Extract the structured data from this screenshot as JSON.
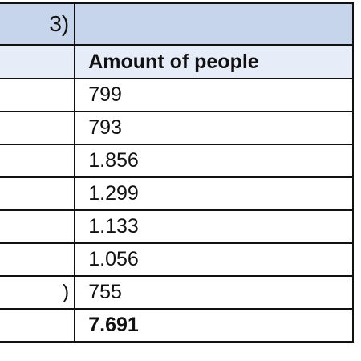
{
  "table": {
    "title_fragment": "3)",
    "header": {
      "left": "",
      "amount": "Amount of people"
    },
    "rows": [
      {
        "left": "",
        "amount": "799"
      },
      {
        "left": "",
        "amount": "793"
      },
      {
        "left": "",
        "amount": "1.856"
      },
      {
        "left": "",
        "amount": "1.299"
      },
      {
        "left": "",
        "amount": "1.133"
      },
      {
        "left": "",
        "amount": "1.056"
      },
      {
        "left": ")",
        "amount": "755"
      }
    ],
    "total": {
      "left": "",
      "amount": "7.691"
    }
  },
  "colors": {
    "title_bg": "#c7d5ec",
    "header_bg": "#e6edf8",
    "border": "#111111"
  }
}
